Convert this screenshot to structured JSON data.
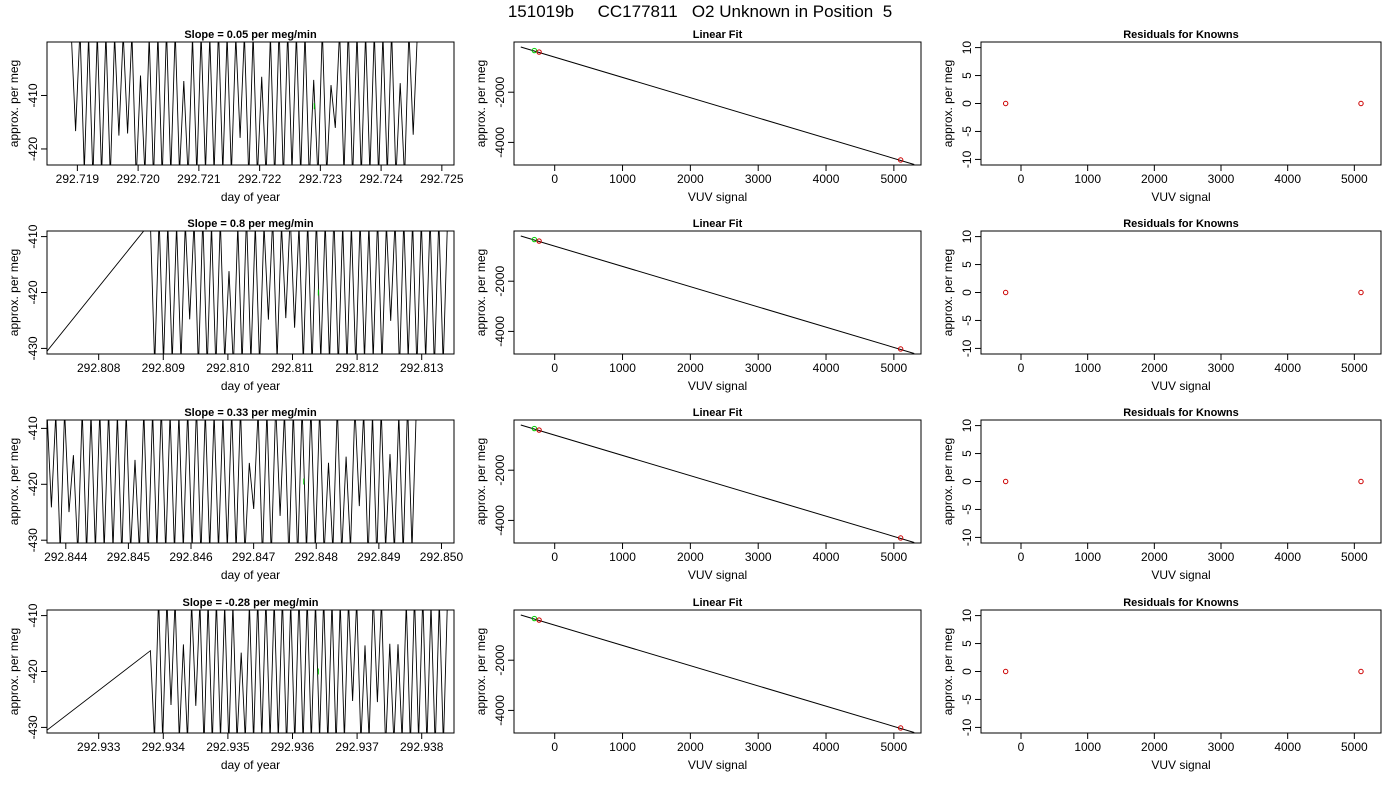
{
  "page": {
    "title": "151019b     CC177811   O2 Unknown in Position  5"
  },
  "chart_data": [
    {
      "type": "line",
      "panel": "time",
      "title": "Slope =  0.05  per meg/min",
      "xlabel": "day of year",
      "ylabel": "approx. per meg",
      "xlim": [
        292.7185,
        292.7252
      ],
      "ylim": [
        -423,
        -400
      ],
      "xticks": [
        292.719,
        292.72,
        292.721,
        292.722,
        292.723,
        292.724,
        292.725
      ],
      "xtick_labels": [
        "292.719",
        "292.720",
        "292.721",
        "292.722",
        "292.723",
        "292.724",
        "292.725"
      ],
      "yticks": [
        -410,
        -420
      ],
      "ytick_labels": [
        "-410",
        "-420"
      ],
      "trace_x_range": [
        292.7189,
        292.7246
      ],
      "trace_start_x": 292.7189,
      "trace_low_start": false,
      "trace_osc_count": 40,
      "trace_seed": 11,
      "marker": {
        "x": 292.7229,
        "y": -412,
        "color": "#00cc00"
      }
    },
    {
      "type": "line",
      "panel": "fit",
      "title": "Linear Fit",
      "xlabel": "VUV signal",
      "ylabel": "approx. per meg",
      "xlim": [
        -600,
        5400
      ],
      "ylim": [
        -4900,
        0
      ],
      "xticks": [
        0,
        1000,
        2000,
        3000,
        4000,
        5000
      ],
      "xtick_labels": [
        "0",
        "1000",
        "2000",
        "3000",
        "4000",
        "5000"
      ],
      "yticks": [
        -2000,
        -4000
      ],
      "ytick_labels": [
        "-2000",
        "-4000"
      ],
      "line": {
        "x": [
          -500,
          5300
        ],
        "y": [
          -200,
          -4880
        ]
      },
      "known_points": [
        {
          "x": -230,
          "y": -400
        },
        {
          "x": 5100,
          "y": -4700
        }
      ],
      "unknown_points": [
        {
          "x": -300,
          "y": -340
        }
      ]
    },
    {
      "type": "scatter",
      "panel": "resid",
      "title": "Residuals for Knowns",
      "xlabel": "VUV signal",
      "ylabel": "approx. per meg",
      "xlim": [
        -600,
        5400
      ],
      "ylim": [
        -11,
        11
      ],
      "xticks": [
        0,
        1000,
        2000,
        3000,
        4000,
        5000
      ],
      "xtick_labels": [
        "0",
        "1000",
        "2000",
        "3000",
        "4000",
        "5000"
      ],
      "yticks": [
        10,
        5,
        0,
        -5,
        -10
      ],
      "ytick_labels": [
        "10",
        "5",
        "0",
        "-5",
        "-10"
      ],
      "points": [
        {
          "x": -230,
          "y": 0
        },
        {
          "x": 5100,
          "y": 0
        }
      ]
    },
    {
      "type": "line",
      "panel": "time",
      "title": "Slope =  0.8  per meg/min",
      "xlabel": "day of year",
      "ylabel": "approx. per meg",
      "xlim": [
        292.8072,
        292.8135
      ],
      "ylim": [
        -431,
        -409
      ],
      "xticks": [
        292.808,
        292.809,
        292.81,
        292.811,
        292.812,
        292.813
      ],
      "xtick_labels": [
        "292.808",
        "292.809",
        "292.810",
        "292.811",
        "292.812",
        "292.813"
      ],
      "yticks": [
        -410,
        -420,
        -430
      ],
      "ytick_labels": [
        "-410",
        "-420",
        "-430"
      ],
      "trace_x_range": [
        292.8088,
        292.8134
      ],
      "trace_start_x": 292.8088,
      "trace_low_start": true,
      "trace_osc_count": 34,
      "trace_seed": 23,
      "marker": {
        "x": 292.8114,
        "y": -420,
        "color": "#00cc00"
      }
    },
    {
      "type": "line",
      "panel": "fit",
      "title": "Linear Fit",
      "xlabel": "VUV signal",
      "ylabel": "approx. per meg",
      "xlim": [
        -600,
        5400
      ],
      "ylim": [
        -4900,
        0
      ],
      "xticks": [
        0,
        1000,
        2000,
        3000,
        4000,
        5000
      ],
      "xtick_labels": [
        "0",
        "1000",
        "2000",
        "3000",
        "4000",
        "5000"
      ],
      "yticks": [
        -2000,
        -4000
      ],
      "ytick_labels": [
        "-2000",
        "-4000"
      ],
      "line": {
        "x": [
          -500,
          5300
        ],
        "y": [
          -200,
          -4880
        ]
      },
      "known_points": [
        {
          "x": -230,
          "y": -400
        },
        {
          "x": 5100,
          "y": -4700
        }
      ],
      "unknown_points": [
        {
          "x": -300,
          "y": -340
        }
      ]
    },
    {
      "type": "scatter",
      "panel": "resid",
      "title": "Residuals for Knowns",
      "xlabel": "VUV signal",
      "ylabel": "approx. per meg",
      "xlim": [
        -600,
        5400
      ],
      "ylim": [
        -11,
        11
      ],
      "xticks": [
        0,
        1000,
        2000,
        3000,
        4000,
        5000
      ],
      "xtick_labels": [
        "0",
        "1000",
        "2000",
        "3000",
        "4000",
        "5000"
      ],
      "yticks": [
        10,
        5,
        0,
        -5,
        -10
      ],
      "ytick_labels": [
        "10",
        "5",
        "0",
        "-5",
        "-10"
      ],
      "points": [
        {
          "x": -230,
          "y": 0
        },
        {
          "x": 5100,
          "y": 0
        }
      ]
    },
    {
      "type": "line",
      "panel": "time",
      "title": "Slope =  0.33  per meg/min",
      "xlabel": "day of year",
      "ylabel": "approx. per meg",
      "xlim": [
        292.8437,
        292.8502
      ],
      "ylim": [
        -430.5,
        -408.5
      ],
      "xticks": [
        292.844,
        292.845,
        292.846,
        292.847,
        292.848,
        292.849,
        292.85
      ],
      "xtick_labels": [
        "292.844",
        "292.845",
        "292.846",
        "292.847",
        "292.848",
        "292.849",
        "292.850"
      ],
      "yticks": [
        -410,
        -420,
        -430
      ],
      "ytick_labels": [
        "-410",
        "-420",
        "-430"
      ],
      "trace_x_range": [
        292.8437,
        292.8496
      ],
      "trace_start_x": 292.8437,
      "trace_low_start": false,
      "trace_osc_count": 42,
      "trace_seed": 37,
      "marker": {
        "x": 292.8478,
        "y": -419.5,
        "color": "#00cc00"
      }
    },
    {
      "type": "line",
      "panel": "fit",
      "title": "Linear Fit",
      "xlabel": "VUV signal",
      "ylabel": "approx. per meg",
      "xlim": [
        -600,
        5400
      ],
      "ylim": [
        -4900,
        0
      ],
      "xticks": [
        0,
        1000,
        2000,
        3000,
        4000,
        5000
      ],
      "xtick_labels": [
        "0",
        "1000",
        "2000",
        "3000",
        "4000",
        "5000"
      ],
      "yticks": [
        -2000,
        -4000
      ],
      "ytick_labels": [
        "-2000",
        "-4000"
      ],
      "line": {
        "x": [
          -500,
          5300
        ],
        "y": [
          -200,
          -4880
        ]
      },
      "known_points": [
        {
          "x": -230,
          "y": -400
        },
        {
          "x": 5100,
          "y": -4700
        }
      ],
      "unknown_points": [
        {
          "x": -300,
          "y": -340
        }
      ]
    },
    {
      "type": "scatter",
      "panel": "resid",
      "title": "Residuals for Knowns",
      "xlabel": "VUV signal",
      "ylabel": "approx. per meg",
      "xlim": [
        -600,
        5400
      ],
      "ylim": [
        -11,
        11
      ],
      "xticks": [
        0,
        1000,
        2000,
        3000,
        4000,
        5000
      ],
      "xtick_labels": [
        "0",
        "1000",
        "2000",
        "3000",
        "4000",
        "5000"
      ],
      "yticks": [
        10,
        5,
        0,
        -5,
        -10
      ],
      "ytick_labels": [
        "10",
        "5",
        "0",
        "-5",
        "-10"
      ],
      "points": [
        {
          "x": -230,
          "y": 0
        },
        {
          "x": 5100,
          "y": 0
        }
      ]
    },
    {
      "type": "line",
      "panel": "time",
      "title": "Slope =  -0.28  per meg/min",
      "xlabel": "day of year",
      "ylabel": "approx. per meg",
      "xlim": [
        292.9322,
        292.9385
      ],
      "ylim": [
        -431,
        -409
      ],
      "xticks": [
        292.933,
        292.934,
        292.935,
        292.936,
        292.937,
        292.938
      ],
      "xtick_labels": [
        "292.933",
        "292.934",
        "292.935",
        "292.936",
        "292.937",
        "292.938"
      ],
      "yticks": [
        -410,
        -420,
        -430
      ],
      "ytick_labels": [
        "-410",
        "-420",
        "-430"
      ],
      "trace_x_range": [
        292.9338,
        292.9384
      ],
      "trace_start_x": 292.9338,
      "trace_low_start": true,
      "trace_osc_count": 36,
      "trace_seed": 53,
      "marker": {
        "x": 292.9364,
        "y": -420,
        "color": "#00cc00"
      }
    },
    {
      "type": "line",
      "panel": "fit",
      "title": "Linear Fit",
      "xlabel": "VUV signal",
      "ylabel": "approx. per meg",
      "xlim": [
        -600,
        5400
      ],
      "ylim": [
        -4900,
        0
      ],
      "xticks": [
        0,
        1000,
        2000,
        3000,
        4000,
        5000
      ],
      "xtick_labels": [
        "0",
        "1000",
        "2000",
        "3000",
        "4000",
        "5000"
      ],
      "yticks": [
        -2000,
        -4000
      ],
      "ytick_labels": [
        "-2000",
        "-4000"
      ],
      "line": {
        "x": [
          -500,
          5300
        ],
        "y": [
          -200,
          -4880
        ]
      },
      "known_points": [
        {
          "x": -230,
          "y": -400
        },
        {
          "x": 5100,
          "y": -4700
        }
      ],
      "unknown_points": [
        {
          "x": -300,
          "y": -340
        }
      ]
    },
    {
      "type": "scatter",
      "panel": "resid",
      "title": "Residuals for Knowns",
      "xlabel": "VUV signal",
      "ylabel": "approx. per meg",
      "xlim": [
        -600,
        5400
      ],
      "ylim": [
        -11,
        11
      ],
      "xticks": [
        0,
        1000,
        2000,
        3000,
        4000,
        5000
      ],
      "xtick_labels": [
        "0",
        "1000",
        "2000",
        "3000",
        "4000",
        "5000"
      ],
      "yticks": [
        10,
        5,
        0,
        -5,
        -10
      ],
      "ytick_labels": [
        "10",
        "5",
        "0",
        "-5",
        "-10"
      ],
      "points": [
        {
          "x": -230,
          "y": 0
        },
        {
          "x": 5100,
          "y": 0
        }
      ]
    }
  ]
}
